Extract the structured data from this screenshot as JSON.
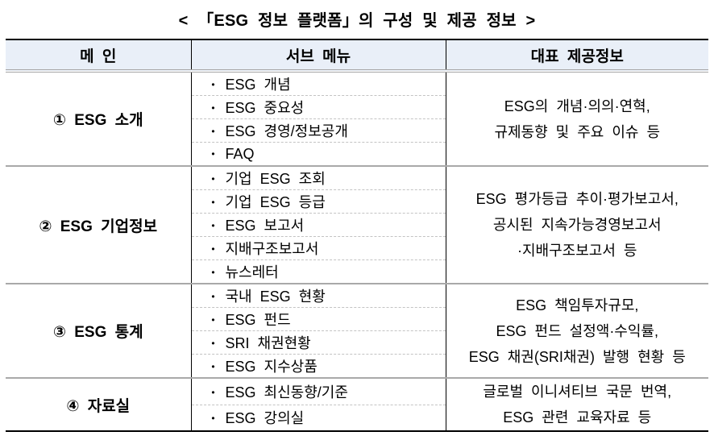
{
  "title": "< 「ESG 정보 플랫폼」의 구성 및 제공 정보 >",
  "table": {
    "headers": [
      "메 인",
      "서브 메뉴",
      "대표 제공정보"
    ],
    "bullet": "•",
    "rows": [
      {
        "main": "① ESG 소개",
        "subs": [
          "ESG 개념",
          "ESG 중요성",
          "ESG 경영/정보공개",
          "FAQ"
        ],
        "info": [
          "ESG의 개념·의의·연혁,",
          "규제동향 및 주요 이슈 등"
        ]
      },
      {
        "main": "② ESG 기업정보",
        "subs": [
          "기업 ESG 조회",
          "기업 ESG 등급",
          "ESG 보고서",
          "지배구조보고서",
          "뉴스레터"
        ],
        "info": [
          "ESG 평가등급 추이·평가보고서,",
          "공시된 지속가능경영보고서",
          "·지배구조보고서 등"
        ]
      },
      {
        "main": "③ ESG 통계",
        "subs": [
          "국내 ESG 현황",
          "ESG 펀드",
          "SRI 채권현황",
          "ESG 지수상품"
        ],
        "info": [
          "ESG 책임투자규모,",
          "ESG 펀드 설정액·수익률,",
          "ESG 채권(SRI채권) 발행 현황 등"
        ]
      },
      {
        "main": "④ 자료실",
        "subs": [
          "ESG 최신동향/기준",
          "ESG 강의실"
        ],
        "info": [
          "글로벌 이니셔티브 국문 번역,",
          "ESG 관련 교육자료 등"
        ]
      }
    ],
    "colors": {
      "header_bg": "#e9eff8",
      "border_black": "#000000",
      "group_separator_gray": "#a9a9a9",
      "sub_separator_dashed_gray": "#c3c3c3",
      "header_double_line_gray": "#a6a6a6"
    }
  }
}
